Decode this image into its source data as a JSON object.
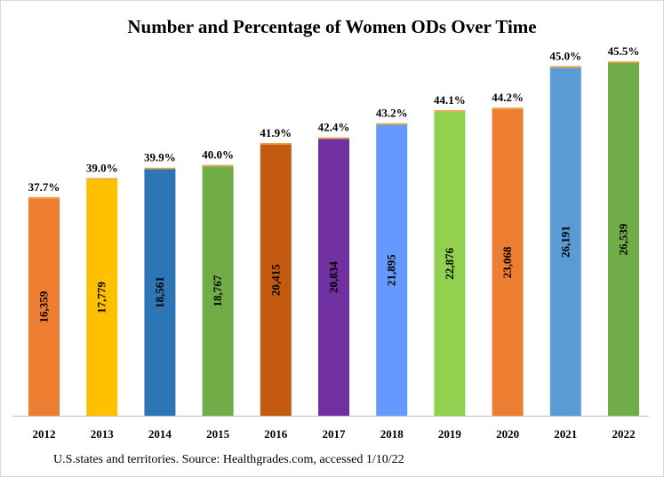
{
  "chart_data": {
    "type": "bar",
    "title": "Number and Percentage of Women ODs Over Time",
    "categories": [
      "2012",
      "2013",
      "2014",
      "2015",
      "2016",
      "2017",
      "2018",
      "2019",
      "2020",
      "2021",
      "2022"
    ],
    "values": [
      16359,
      17779,
      18561,
      18767,
      20415,
      20834,
      21895,
      22876,
      23068,
      26191,
      26539
    ],
    "value_labels": [
      "16,359",
      "17,779",
      "18,561",
      "18,767",
      "20,415",
      "20,834",
      "21,895",
      "22,876",
      "23,068",
      "26,191",
      "26,539"
    ],
    "percent_labels": [
      "37.7%",
      "39.0%",
      "39.9%",
      "40.0%",
      "41.9%",
      "42.4%",
      "43.2%",
      "44.1%",
      "44.2%",
      "45.0%",
      "45.5%"
    ],
    "colors": [
      "#ED7D31",
      "#FFC000",
      "#2E75B6",
      "#70AD47",
      "#C55A11",
      "#7030A0",
      "#6699FF",
      "#92D050",
      "#ED7D31",
      "#5B9BD5",
      "#70AD47"
    ],
    "percent_bar_values": [
      37.7,
      39.0,
      39.9,
      40.0,
      41.9,
      42.4,
      43.2,
      44.1,
      44.2,
      45.0,
      45.5
    ],
    "percent_bar_color": "#E8A33D",
    "xlabel": "",
    "ylabel": "",
    "grid": false,
    "source": "U.S.states and territories. Source: Healthgrades.com, accessed 1/10/22"
  }
}
